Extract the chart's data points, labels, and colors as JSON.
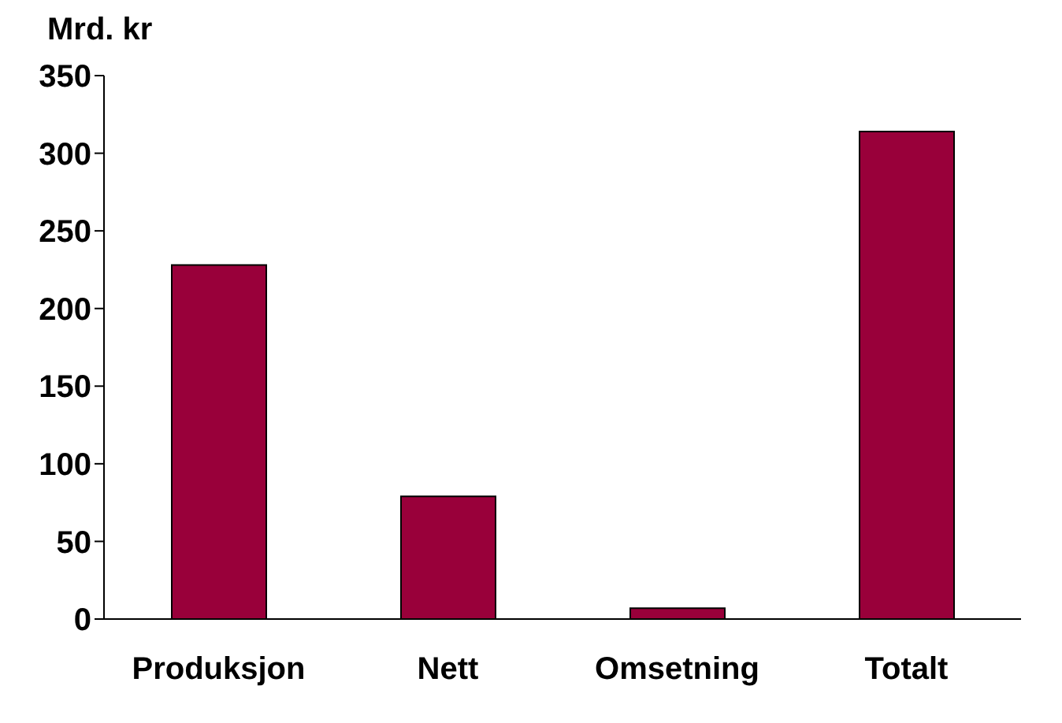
{
  "chart_data": {
    "type": "bar",
    "ylabel": "Mrd. kr",
    "categories": [
      "Produksjon",
      "Nett",
      "Omsetning",
      "Totalt"
    ],
    "values": [
      228,
      79,
      7,
      314
    ],
    "colors": [
      "#99003a",
      "#99003a",
      "#99003a",
      "#99003a"
    ],
    "ylim": [
      0,
      350
    ],
    "yticks": [
      0,
      50,
      100,
      150,
      200,
      250,
      300,
      350
    ],
    "grid": false,
    "legend": false
  }
}
